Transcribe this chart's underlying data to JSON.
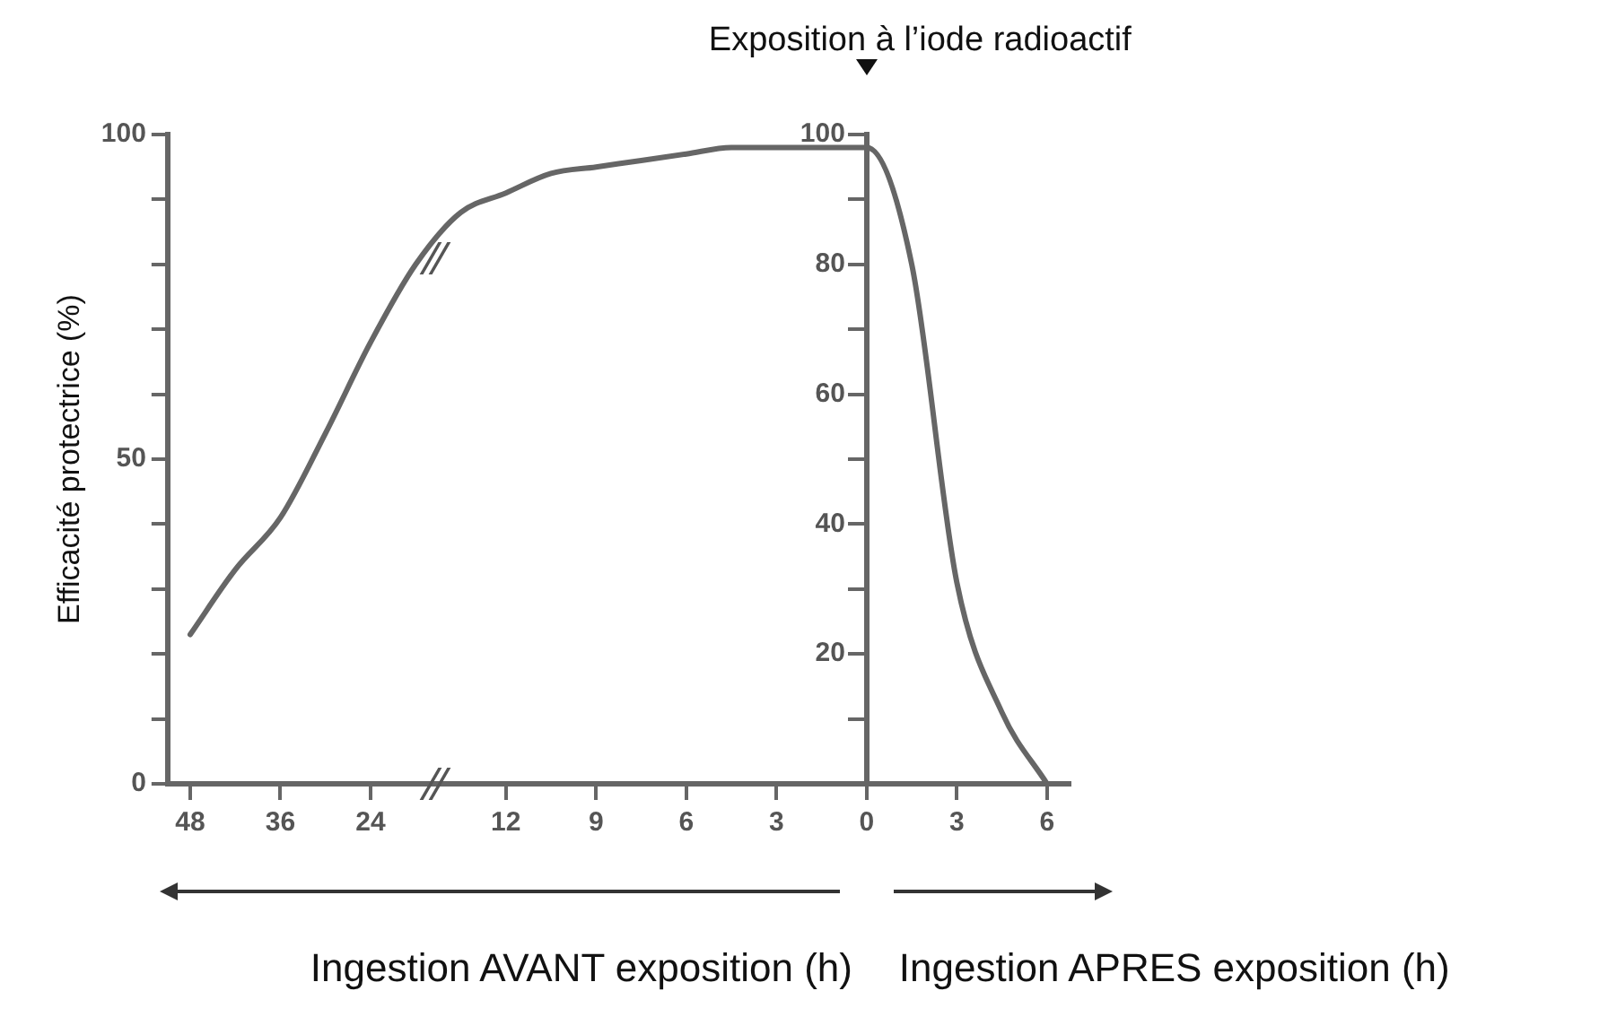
{
  "chart_data": {
    "type": "line",
    "ylabel": "Efficacité protectrice (%)",
    "categories": [
      "48",
      null,
      "36",
      null,
      "24",
      null,
      null,
      "12",
      null,
      "9",
      null,
      "6",
      null,
      "3",
      null,
      "0",
      null,
      "3",
      null,
      "6"
    ],
    "series": [
      {
        "color": "#666666",
        "values": [
          23,
          33,
          41,
          54,
          68,
          80,
          88,
          91,
          94,
          95,
          96,
          97,
          98,
          98,
          98,
          98,
          80,
          31,
          11,
          0
        ]
      }
    ],
    "ylim": [
      0,
      100
    ],
    "yticks": [
      0,
      {
        "value": 10,
        "label": null
      },
      {
        "value": 20,
        "label": null
      },
      {
        "value": 30,
        "label": null
      },
      {
        "value": 40,
        "label": null
      },
      50,
      {
        "value": 60,
        "label": null
      },
      {
        "value": 70,
        "label": null
      },
      {
        "value": 80,
        "label": null
      },
      {
        "value": 90,
        "label": null
      },
      100
    ],
    "y2lim": [
      0,
      100
    ],
    "y2ticks": [
      {
        "value": 10,
        "label": null
      },
      20,
      {
        "value": 30,
        "label": null
      },
      40,
      {
        "value": 50,
        "label": null
      },
      60,
      {
        "value": 70,
        "label": null
      },
      80,
      {
        "value": 90,
        "label": null
      },
      100
    ],
    "annotations": [
      {
        "text": "Exposition à l’iode radioactif",
        "x": "0",
        "y": 98
      },
      "Ingestion AVANT exposition (h)",
      "Ingestion APRES exposition (h)"
    ],
    "grid": false,
    "legend": false,
    "marker": "none",
    "line_style": "solid"
  }
}
